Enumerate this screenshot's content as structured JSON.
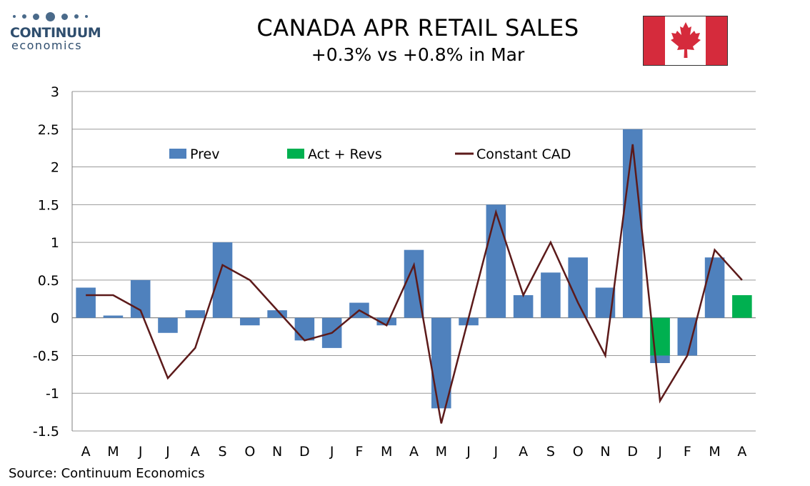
{
  "logo": {
    "name": "CONTINUUM",
    "sub": "economics"
  },
  "header": {
    "title": "CANADA APR RETAIL SALES",
    "subtitle": "+0.3% vs +0.8% in Mar"
  },
  "flag": {
    "icon": "canada-flag-icon",
    "red": "#d52b3c"
  },
  "footer": {
    "source": "Source: Continuum Economics"
  },
  "chart_data": {
    "type": "bar",
    "categories": [
      "A",
      "M",
      "J",
      "J",
      "A",
      "S",
      "O",
      "N",
      "D",
      "J",
      "F",
      "M",
      "A",
      "M",
      "J",
      "J",
      "A",
      "S",
      "O",
      "N",
      "D",
      "J",
      "F",
      "M",
      "A"
    ],
    "ylim": [
      -1.5,
      3
    ],
    "yticks": [
      3,
      2.5,
      2,
      1.5,
      1,
      0.5,
      0,
      -0.5,
      -1,
      -1.5
    ],
    "ytick_labels": [
      "3",
      "2.5",
      "2",
      "1.5",
      "1",
      "0.5",
      "0",
      "-0.5",
      "-1",
      "-1.5"
    ],
    "grid": true,
    "legend_position": "top-left",
    "series": [
      {
        "name": "Prev",
        "kind": "bar",
        "color": "#4f81bd",
        "values": [
          0.4,
          0.03,
          0.5,
          -0.2,
          0.1,
          1.0,
          -0.1,
          0.1,
          -0.3,
          -0.4,
          0.2,
          -0.1,
          0.9,
          -1.2,
          -0.1,
          1.5,
          0.3,
          0.6,
          0.8,
          0.4,
          2.5,
          -0.6,
          -0.5,
          0.8,
          null
        ]
      },
      {
        "name": "Act + Revs",
        "kind": "bar",
        "color": "#00b050",
        "values": [
          null,
          null,
          null,
          null,
          null,
          null,
          null,
          null,
          null,
          null,
          null,
          null,
          null,
          null,
          null,
          null,
          null,
          null,
          null,
          null,
          null,
          -0.5,
          null,
          null,
          0.3
        ]
      },
      {
        "name": "Constant CAD",
        "kind": "line",
        "color": "#5c1a1a",
        "values": [
          0.3,
          0.3,
          0.1,
          -0.8,
          -0.4,
          0.7,
          0.5,
          0.1,
          -0.3,
          -0.2,
          0.1,
          -0.1,
          0.7,
          -1.4,
          0.0,
          1.4,
          0.3,
          1.0,
          0.2,
          -0.5,
          2.3,
          -1.1,
          -0.5,
          0.9,
          0.5
        ]
      }
    ]
  }
}
